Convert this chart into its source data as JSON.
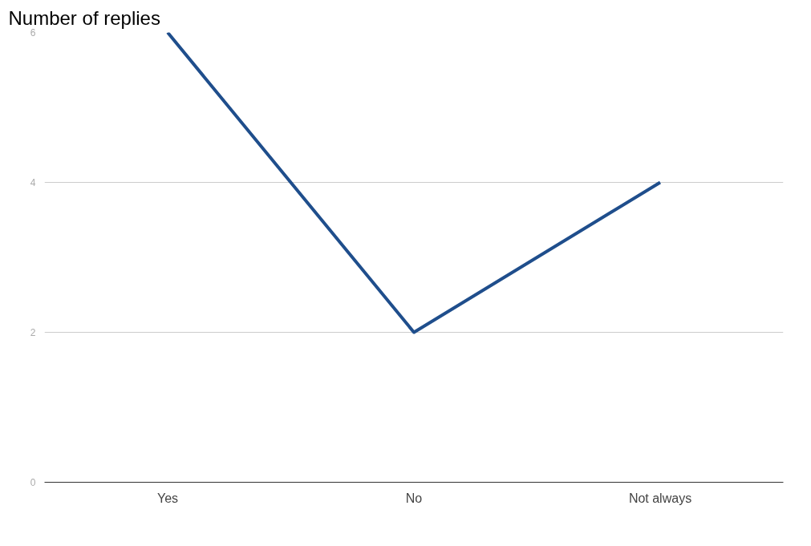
{
  "chart_data": {
    "type": "line",
    "title": "Number of replies",
    "categories": [
      "Yes",
      "No",
      "Not always"
    ],
    "series": [
      {
        "color": "#1f4e8c",
        "values": [
          6,
          2,
          4
        ]
      }
    ],
    "ylim": [
      0,
      6
    ],
    "yticks": [
      0,
      2,
      4,
      6
    ],
    "grid": "y",
    "marker": "none",
    "line_style": "solid"
  }
}
